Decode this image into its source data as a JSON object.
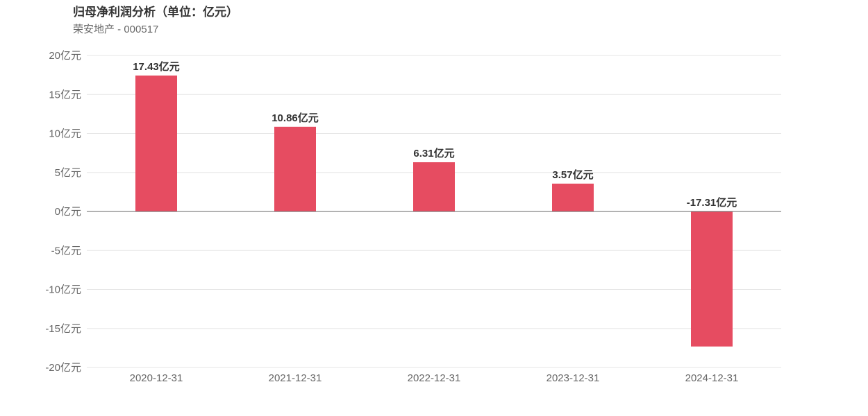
{
  "header": {
    "title": "归母净利润分析（单位：亿元）",
    "subtitle": "荣安地产 - 000517"
  },
  "colors": {
    "bar": "#e64c61",
    "grid": "#e6e6e6",
    "zero_line": "#666666",
    "tick_text": "#666666",
    "label_text": "#333333"
  },
  "chart_data": {
    "type": "bar",
    "title": "归母净利润分析（单位：亿元）",
    "subtitle": "荣安地产 - 000517",
    "categories": [
      "2020-12-31",
      "2021-12-31",
      "2022-12-31",
      "2023-12-31",
      "2024-12-31"
    ],
    "values": [
      17.43,
      10.86,
      6.31,
      3.57,
      -17.31
    ],
    "data_labels": [
      "17.43亿元",
      "10.86亿元",
      "6.31亿元",
      "3.57亿元",
      "-17.31亿元"
    ],
    "yticks": [
      20,
      15,
      10,
      5,
      0,
      -5,
      -10,
      -15,
      -20
    ],
    "ytick_labels": [
      "20亿元",
      "15亿元",
      "10亿元",
      "5亿元",
      "0亿元",
      "-5亿元",
      "-10亿元",
      "-15亿元",
      "-20亿元"
    ],
    "ylim": [
      -20,
      20
    ],
    "xlabel": "",
    "ylabel": "",
    "grid": true,
    "legend": "none"
  }
}
